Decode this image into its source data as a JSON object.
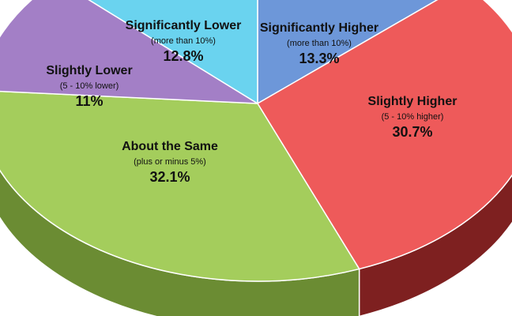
{
  "chart_data": {
    "type": "pie",
    "style": "3d",
    "legend": "none",
    "slices": [
      {
        "name": "Significantly Higher",
        "note": "(more than 10%)",
        "value": 13.3,
        "value_label": "13.3%",
        "color": "#6d97d9",
        "side_color": "#3d5f99"
      },
      {
        "name": "Slightly Higher",
        "note": "(5 - 10% higher)",
        "value": 30.7,
        "value_label": "30.7%",
        "color": "#ee5a5a",
        "side_color": "#7e2020"
      },
      {
        "name": "About the Same",
        "note": "(plus or minus 5%)",
        "value": 32.1,
        "value_label": "32.1%",
        "color": "#a4cd5c",
        "side_color": "#6b8c33"
      },
      {
        "name": "Slightly Lower",
        "note": "(5 - 10% lower)",
        "value": 11,
        "value_label": "11%",
        "color": "#a37fc6",
        "side_color": "#6a4e8a"
      },
      {
        "name": "Significantly Lower",
        "note": "(more than 10%)",
        "value": 12.8,
        "value_label": "12.8%",
        "color": "#6ad3ef",
        "side_color": "#3a93ad"
      }
    ]
  }
}
